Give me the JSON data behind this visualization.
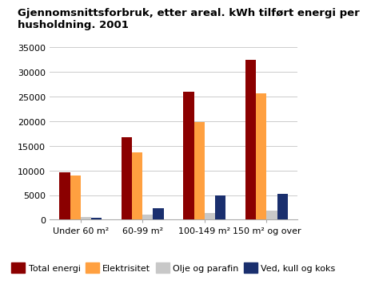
{
  "title": "Gjennomsnittsforbruk, etter areal. kWh tilført energi per\nhusholdning. 2001",
  "categories": [
    "Under 60 m²",
    "60-99 m²",
    "100-149 m²",
    "150 m² og over"
  ],
  "series": {
    "Total energi": [
      9600,
      16800,
      26000,
      32500
    ],
    "Elektrisitet": [
      9000,
      13600,
      19800,
      25600
    ],
    "Olje og parafin": [
      500,
      1000,
      1400,
      1800
    ],
    "Ved, kull og koks": [
      400,
      2300,
      5000,
      5200
    ]
  },
  "colors": {
    "Total energi": "#8B0000",
    "Elektrisitet": "#FFA040",
    "Olje og parafin": "#C8C8C8",
    "Ved, kull og koks": "#1a2f6e"
  },
  "ylim": [
    0,
    35000
  ],
  "yticks": [
    0,
    5000,
    10000,
    15000,
    20000,
    25000,
    30000,
    35000
  ],
  "title_fontsize": 9.5,
  "tick_fontsize": 8,
  "legend_fontsize": 8,
  "bar_width": 0.17,
  "background_color": "#ffffff",
  "grid_color": "#cccccc"
}
